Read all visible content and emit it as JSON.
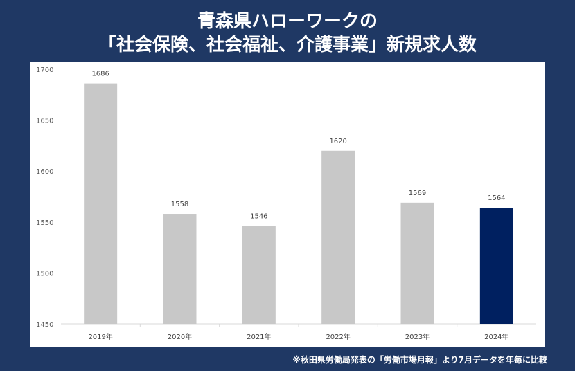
{
  "title_line1": "青森県ハローワークの",
  "title_line2": "「社会保険、社会福祉、介護事業」新規求人数",
  "footnote": "※秋田県労働局発表の「労働市場月報」より7月データを年毎に比較",
  "colors": {
    "background": "#1f3864",
    "bar": "#c8c8c8",
    "highlight": "#002060"
  },
  "chart_data": {
    "type": "bar",
    "categories": [
      "2019年",
      "2020年",
      "2021年",
      "2022年",
      "2023年",
      "2024年"
    ],
    "values": [
      1686,
      1558,
      1546,
      1620,
      1569,
      1564
    ],
    "highlight_index": 5,
    "ylim": [
      1450,
      1700
    ],
    "yticks": [
      1450,
      1500,
      1550,
      1600,
      1650,
      1700
    ],
    "title": "",
    "xlabel": "",
    "ylabel": "",
    "grid": false,
    "legend": "none"
  }
}
